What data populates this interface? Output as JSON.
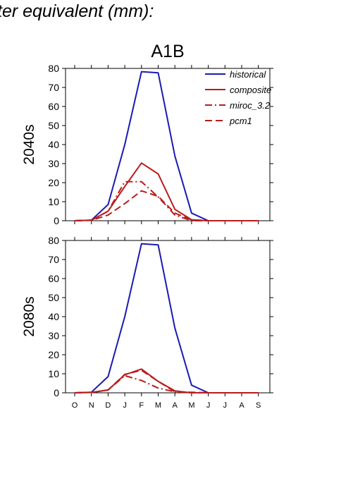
{
  "page": {
    "title": "ter equivalent (mm):"
  },
  "colors": {
    "historical": "#1a1ab4",
    "scenario": "#b81c1c",
    "axis": "#000000"
  },
  "chart_data": [
    {
      "type": "line",
      "title": "A1B",
      "ylabel": "2040s",
      "xlabel": "",
      "x": [
        "O",
        "N",
        "D",
        "J",
        "F",
        "M",
        "A",
        "M",
        "J",
        "J",
        "A",
        "S"
      ],
      "ylim": [
        0,
        80
      ],
      "yticks": [
        0,
        10,
        20,
        30,
        40,
        50,
        60,
        70,
        80
      ],
      "grid": false,
      "legend": "top-right",
      "series": [
        {
          "name": "historical",
          "style": "solid",
          "values": [
            0,
            0.3,
            8.5,
            40,
            78.3,
            77.7,
            34,
            4,
            0,
            0,
            0,
            0
          ]
        },
        {
          "name": "composite",
          "style": "solid",
          "values": [
            0,
            0.3,
            5,
            18,
            30.3,
            24.6,
            6,
            0.5,
            0,
            0,
            0,
            0
          ]
        },
        {
          "name": "miroc_3.2",
          "style": "dashdot",
          "values": [
            0,
            0.3,
            5,
            20.5,
            20.5,
            12.5,
            3,
            0,
            0,
            0,
            0,
            0
          ]
        },
        {
          "name": "pcm1",
          "style": "dashed",
          "values": [
            0,
            0.2,
            3,
            9,
            15.7,
            12.8,
            4,
            0.5,
            0,
            0,
            0,
            0
          ]
        }
      ]
    },
    {
      "type": "line",
      "title": "",
      "ylabel": "2080s",
      "xlabel": "",
      "x": [
        "O",
        "N",
        "D",
        "J",
        "F",
        "M",
        "A",
        "M",
        "J",
        "J",
        "A",
        "S"
      ],
      "ylim": [
        0,
        80
      ],
      "yticks": [
        0,
        10,
        20,
        30,
        40,
        50,
        60,
        70,
        80
      ],
      "grid": false,
      "series": [
        {
          "name": "historical",
          "style": "solid",
          "values": [
            0,
            0.3,
            8.5,
            40,
            78.3,
            77.7,
            34,
            4,
            0,
            0,
            0,
            0
          ]
        },
        {
          "name": "composite",
          "style": "solid",
          "values": [
            0,
            0.2,
            1.5,
            9.5,
            12.5,
            6,
            1,
            0,
            0,
            0,
            0,
            0
          ]
        },
        {
          "name": "miroc_3.2",
          "style": "dashdot",
          "values": [
            0,
            0.2,
            1.5,
            9,
            6.5,
            2.5,
            0.5,
            0,
            0,
            0,
            0,
            0
          ]
        },
        {
          "name": "pcm1",
          "style": "dashed",
          "values": [
            0,
            0.2,
            1.5,
            9.7,
            11.8,
            6,
            0.5,
            0.3,
            0,
            0,
            0,
            0
          ]
        }
      ]
    }
  ]
}
